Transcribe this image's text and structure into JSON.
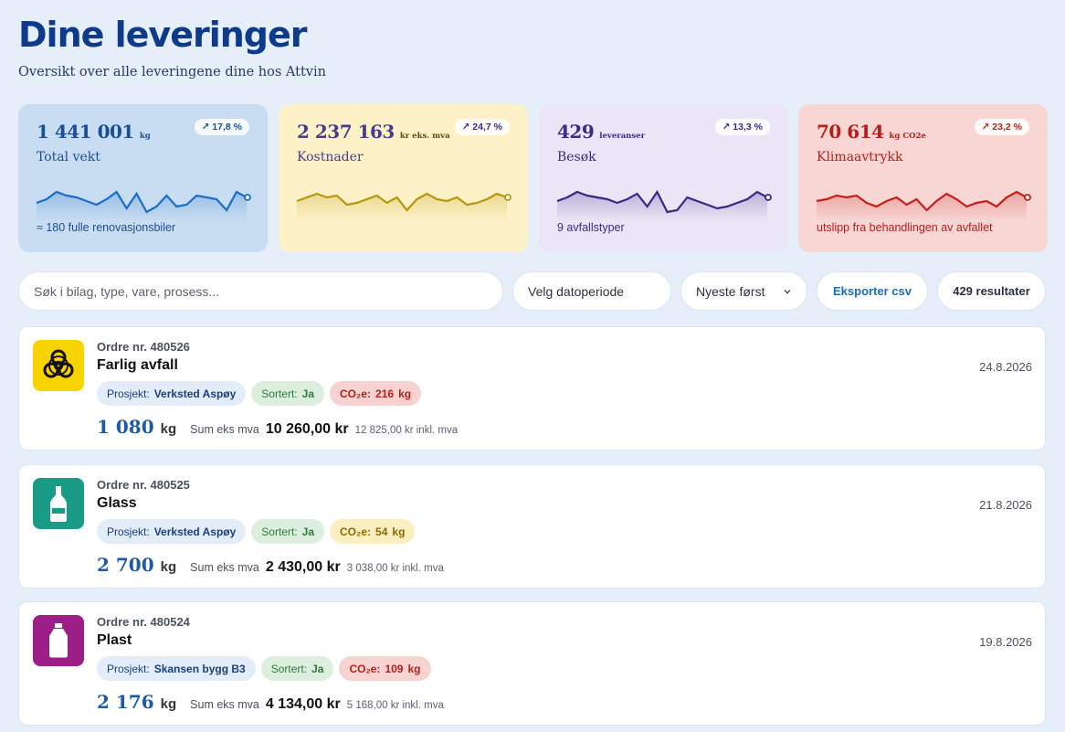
{
  "header": {
    "title": "Dine leveringer",
    "subtitle": "Oversikt over alle leveringene dine hos Attvin"
  },
  "stats": [
    {
      "value": "1 441 001",
      "unit": "kg",
      "label": "Total vekt",
      "trend": "↗ 17,8 %",
      "footnote": "≈ 180 fulle renovasjonsbiler",
      "color": "#1a6fc4",
      "spark": [
        10,
        8,
        4,
        6,
        7,
        9,
        11,
        8,
        4,
        13,
        5,
        15,
        12,
        6,
        12,
        11,
        6,
        7,
        8,
        14,
        4,
        7
      ]
    },
    {
      "value": "2 237 163",
      "unit": "kr eks. mva",
      "label": "Kostnader",
      "trend": "↗ 24,7 %",
      "footnote": "",
      "color": "#b8960c",
      "spark": [
        9,
        7,
        5,
        7,
        6,
        11,
        10,
        8,
        6,
        10,
        7,
        14,
        8,
        5,
        8,
        9,
        7,
        11,
        10,
        8,
        5,
        7
      ]
    },
    {
      "value": "429",
      "unit": "leveranser",
      "label": "Besøk",
      "trend": "↗ 13,3 %",
      "footnote": "9 avfallstyper",
      "color": "#3a2785",
      "spark": [
        9,
        7,
        4,
        6,
        7,
        8,
        10,
        8,
        5,
        12,
        4,
        15,
        14,
        7,
        9,
        11,
        13,
        12,
        10,
        8,
        4,
        7
      ]
    },
    {
      "value": "70 614",
      "unit": "kg CO2e",
      "label": "Klimaavtrykk",
      "trend": "↗ 23,2 %",
      "footnote": "utslipp fra behandlingen av avfallet",
      "color": "#c4201a",
      "spark": [
        9,
        8,
        6,
        7,
        6,
        10,
        12,
        9,
        7,
        11,
        8,
        14,
        9,
        5,
        8,
        12,
        10,
        9,
        12,
        7,
        4,
        7
      ]
    }
  ],
  "toolbar": {
    "search_placeholder": "Søk i bilag, type, vare, prosess...",
    "date_label": "Velg datoperiode",
    "sort_label": "Nyeste først",
    "export_label": "Eksporter csv",
    "results_label": "429 resultater"
  },
  "orders": [
    {
      "number": "Ordre nr. 480526",
      "type": "Farlig avfall",
      "date": "24.8.2026",
      "icon": "biohazard-icon",
      "project_key": "Prosjekt:",
      "project": "Verksted Aspøy",
      "sorted_key": "Sortert:",
      "sorted": "Ja",
      "co2_key": "CO₂e:",
      "co2": "216",
      "co2_unit": "kg",
      "kg": "1 080",
      "kg_unit": "kg",
      "sum_label": "Sum eks mva",
      "sum": "10 260,00 kr",
      "incl": "12 825,00 kr inkl. mva"
    },
    {
      "number": "Ordre nr. 480525",
      "type": "Glass",
      "date": "21.8.2026",
      "icon": "glass-bottle-icon",
      "project_key": "Prosjekt:",
      "project": "Verksted Aspøy",
      "sorted_key": "Sortert:",
      "sorted": "Ja",
      "co2_key": "CO₂e:",
      "co2": "54",
      "co2_unit": "kg",
      "kg": "2 700",
      "kg_unit": "kg",
      "sum_label": "Sum eks mva",
      "sum": "2 430,00 kr",
      "incl": "3 038,00 kr inkl. mva"
    },
    {
      "number": "Ordre nr. 480524",
      "type": "Plast",
      "date": "19.8.2026",
      "icon": "plastic-bottle-icon",
      "project_key": "Prosjekt:",
      "project": "Skansen bygg B3",
      "sorted_key": "Sortert:",
      "sorted": "Ja",
      "co2_key": "CO₂e:",
      "co2": "109",
      "co2_unit": "kg",
      "kg": "2 176",
      "kg_unit": "kg",
      "sum_label": "Sum eks mva",
      "sum": "4 134,00 kr",
      "incl": "5 168,00 kr inkl. mva"
    }
  ]
}
